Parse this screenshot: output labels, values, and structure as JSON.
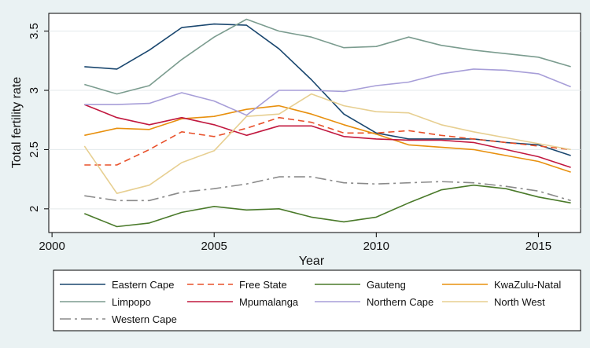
{
  "chart_data": {
    "type": "line",
    "title": "",
    "xlabel": "Year",
    "ylabel": "Total fertility rate",
    "xlim": [
      1999.9,
      2016.3
    ],
    "ylim": [
      1.8,
      3.65
    ],
    "xticks": [
      2000,
      2005,
      2010,
      2015
    ],
    "yticks": [
      2,
      2.5,
      3,
      3.5
    ],
    "xtick_labels": [
      "2000",
      "2005",
      "2010",
      "2015"
    ],
    "ytick_labels": [
      "2",
      "2.5",
      "3",
      "3.5"
    ],
    "grid": "horizontal",
    "legend_position": "bottom",
    "x": [
      2001,
      2002,
      2003,
      2004,
      2005,
      2006,
      2007,
      2008,
      2009,
      2010,
      2011,
      2012,
      2013,
      2014,
      2015,
      2016
    ],
    "series": [
      {
        "name": "Eastern Cape",
        "color": "#1a476f",
        "dash": "solid",
        "values": [
          3.2,
          3.18,
          3.34,
          3.53,
          3.56,
          3.55,
          3.35,
          3.09,
          2.8,
          2.64,
          2.59,
          2.59,
          2.59,
          2.56,
          2.54,
          2.45
        ]
      },
      {
        "name": "Free State",
        "color": "#e8502a",
        "dash": "dashed",
        "values": [
          2.37,
          2.37,
          2.5,
          2.65,
          2.61,
          2.68,
          2.77,
          2.73,
          2.64,
          2.64,
          2.66,
          2.62,
          2.59,
          2.56,
          2.53,
          2.5
        ]
      },
      {
        "name": "Gauteng",
        "color": "#4a7a2a",
        "dash": "solid",
        "values": [
          1.96,
          1.85,
          1.88,
          1.97,
          2.02,
          1.99,
          2.0,
          1.93,
          1.89,
          1.93,
          2.05,
          2.16,
          2.2,
          2.17,
          2.1,
          2.05
        ]
      },
      {
        "name": "KwaZulu-Natal",
        "color": "#e8900e",
        "dash": "solid",
        "values": [
          2.62,
          2.68,
          2.67,
          2.76,
          2.78,
          2.84,
          2.87,
          2.8,
          2.71,
          2.63,
          2.54,
          2.52,
          2.5,
          2.45,
          2.4,
          2.31
        ]
      },
      {
        "name": "Limpopo",
        "color": "#7b9c8f",
        "dash": "solid",
        "values": [
          3.05,
          2.97,
          3.04,
          3.26,
          3.45,
          3.6,
          3.5,
          3.45,
          3.36,
          3.37,
          3.45,
          3.38,
          3.34,
          3.31,
          3.28,
          3.2
        ]
      },
      {
        "name": "Mpumalanga",
        "color": "#c1183f",
        "dash": "solid",
        "values": [
          2.88,
          2.77,
          2.71,
          2.77,
          2.71,
          2.62,
          2.7,
          2.7,
          2.61,
          2.59,
          2.58,
          2.58,
          2.56,
          2.5,
          2.44,
          2.35
        ]
      },
      {
        "name": "Northern Cape",
        "color": "#a79ed8",
        "dash": "solid",
        "values": [
          2.88,
          2.88,
          2.89,
          2.98,
          2.91,
          2.79,
          3.0,
          3.0,
          2.99,
          3.04,
          3.07,
          3.14,
          3.18,
          3.17,
          3.14,
          3.03
        ]
      },
      {
        "name": "North West",
        "color": "#e7cf91",
        "dash": "solid",
        "values": [
          2.53,
          2.13,
          2.2,
          2.39,
          2.49,
          2.78,
          2.8,
          2.97,
          2.87,
          2.82,
          2.81,
          2.71,
          2.65,
          2.6,
          2.55,
          2.5
        ]
      },
      {
        "name": "Western Cape",
        "color": "#8a8a8a",
        "dash": "longdash",
        "values": [
          2.11,
          2.07,
          2.07,
          2.14,
          2.17,
          2.21,
          2.27,
          2.27,
          2.22,
          2.21,
          2.22,
          2.23,
          2.22,
          2.19,
          2.15,
          2.07
        ]
      }
    ]
  }
}
